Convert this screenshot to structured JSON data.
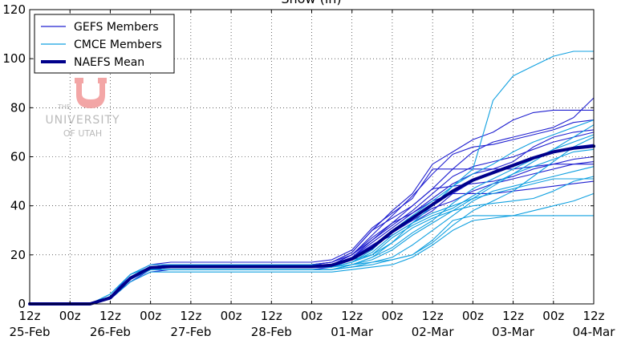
{
  "chart_data": {
    "type": "line",
    "title": "Snow (in)",
    "xlabel": "",
    "ylabel": "",
    "ylim": [
      0,
      120
    ],
    "yticks": [
      0,
      20,
      40,
      60,
      80,
      100,
      120
    ],
    "xlim": [
      0,
      28
    ],
    "x_tick_labels": [
      {
        "x": 0,
        "time": "12z",
        "date": "25-Feb"
      },
      {
        "x": 2,
        "time": "00z",
        "date": ""
      },
      {
        "x": 4,
        "time": "12z",
        "date": "26-Feb"
      },
      {
        "x": 6,
        "time": "00z",
        "date": ""
      },
      {
        "x": 8,
        "time": "12z",
        "date": "27-Feb"
      },
      {
        "x": 10,
        "time": "00z",
        "date": ""
      },
      {
        "x": 12,
        "time": "12z",
        "date": "28-Feb"
      },
      {
        "x": 14,
        "time": "00z",
        "date": ""
      },
      {
        "x": 16,
        "time": "12z",
        "date": "01-Mar"
      },
      {
        "x": 18,
        "time": "00z",
        "date": ""
      },
      {
        "x": 20,
        "time": "12z",
        "date": "02-Mar"
      },
      {
        "x": 22,
        "time": "00z",
        "date": ""
      },
      {
        "x": 24,
        "time": "12z",
        "date": "03-Mar"
      },
      {
        "x": 26,
        "time": "00z",
        "date": ""
      },
      {
        "x": 28,
        "time": "12z",
        "date": "04-Mar"
      }
    ],
    "grid": "dotted",
    "legend": {
      "placement": "top-left",
      "entries": [
        {
          "label": "GEFS Members",
          "color": "#2020d0",
          "width": "thin"
        },
        {
          "label": "CMCE Members",
          "color": "#10a0e0",
          "width": "thin"
        },
        {
          "label": "NAEFS Mean",
          "color": "#00008b",
          "width": "thick"
        }
      ]
    },
    "x": [
      0,
      1,
      2,
      3,
      4,
      5,
      6,
      7,
      8,
      9,
      10,
      11,
      12,
      13,
      14,
      15,
      16,
      17,
      18,
      19,
      20,
      21,
      22,
      23,
      24,
      25,
      26,
      27,
      28
    ],
    "series": [
      {
        "group": "gefs",
        "values": [
          0,
          0,
          0,
          0,
          2,
          10,
          15,
          16,
          16,
          16,
          16,
          16,
          16,
          16,
          16,
          17,
          21,
          30,
          38,
          45,
          57,
          62,
          67,
          70,
          75,
          78,
          79,
          79,
          79
        ]
      },
      {
        "group": "gefs",
        "values": [
          0,
          0,
          0,
          0,
          3,
          11,
          14,
          15,
          15,
          15,
          15,
          15,
          15,
          15,
          15,
          16,
          19,
          26,
          33,
          40,
          47,
          55,
          62,
          66,
          68,
          70,
          72,
          76,
          84
        ]
      },
      {
        "group": "gefs",
        "values": [
          0,
          0,
          0,
          0,
          2,
          9,
          14,
          15,
          15,
          15,
          15,
          15,
          15,
          15,
          15,
          16,
          20,
          28,
          36,
          44,
          53,
          61,
          64,
          65,
          67,
          69,
          71,
          74,
          75
        ]
      },
      {
        "group": "gefs",
        "values": [
          0,
          0,
          0,
          0,
          2,
          10,
          15,
          16,
          16,
          16,
          16,
          16,
          16,
          16,
          16,
          17,
          20,
          27,
          33,
          37,
          43,
          49,
          53,
          55,
          58,
          64,
          68,
          70,
          71
        ]
      },
      {
        "group": "gefs",
        "values": [
          0,
          0,
          0,
          0,
          3,
          12,
          16,
          17,
          17,
          17,
          17,
          17,
          17,
          17,
          17,
          18,
          22,
          31,
          37,
          43,
          55,
          55,
          55,
          55,
          55,
          56,
          57,
          57,
          57
        ]
      },
      {
        "group": "gefs",
        "values": [
          0,
          0,
          0,
          0,
          2,
          10,
          14,
          15,
          15,
          15,
          15,
          15,
          15,
          15,
          15,
          16,
          19,
          25,
          31,
          37,
          42,
          45,
          45,
          45,
          46,
          47,
          48,
          49,
          50
        ]
      },
      {
        "group": "gefs",
        "values": [
          0,
          0,
          0,
          0,
          2,
          9,
          13,
          14,
          14,
          14,
          14,
          14,
          14,
          14,
          14,
          15,
          18,
          24,
          29,
          34,
          39,
          42,
          46,
          49,
          51,
          53,
          55,
          57,
          58
        ]
      },
      {
        "group": "gefs",
        "values": [
          0,
          0,
          0,
          0,
          2,
          11,
          15,
          16,
          16,
          16,
          16,
          16,
          16,
          16,
          16,
          17,
          21,
          30,
          35,
          40,
          47,
          48,
          49,
          50,
          52,
          55,
          57,
          59,
          60
        ]
      },
      {
        "group": "gefs",
        "values": [
          0,
          0,
          0,
          0,
          2,
          10,
          14,
          15,
          15,
          15,
          15,
          15,
          15,
          15,
          15,
          16,
          20,
          26,
          32,
          38,
          45,
          52,
          56,
          58,
          60,
          63,
          66,
          68,
          70
        ]
      },
      {
        "group": "gefs",
        "values": [
          0,
          0,
          0,
          0,
          2,
          10,
          14,
          15,
          15,
          15,
          15,
          15,
          15,
          15,
          15,
          16,
          19,
          24,
          28,
          33,
          38,
          45,
          50,
          54,
          57,
          60,
          62,
          64,
          65
        ]
      },
      {
        "group": "cmce",
        "values": [
          0,
          0,
          0,
          0,
          4,
          12,
          16,
          16,
          16,
          16,
          16,
          16,
          16,
          16,
          16,
          16,
          18,
          20,
          25,
          33,
          40,
          48,
          55,
          83,
          93,
          97,
          101,
          103,
          103
        ]
      },
      {
        "group": "cmce",
        "values": [
          0,
          0,
          0,
          0,
          3,
          11,
          15,
          15,
          15,
          15,
          15,
          15,
          15,
          15,
          15,
          15,
          17,
          22,
          30,
          36,
          42,
          48,
          53,
          57,
          62,
          66,
          69,
          72,
          75
        ]
      },
      {
        "group": "cmce",
        "values": [
          0,
          0,
          0,
          0,
          3,
          10,
          14,
          14,
          14,
          14,
          14,
          14,
          14,
          14,
          14,
          14,
          16,
          18,
          22,
          28,
          33,
          38,
          43,
          48,
          53,
          58,
          63,
          68,
          73
        ]
      },
      {
        "group": "cmce",
        "values": [
          0,
          0,
          0,
          0,
          4,
          12,
          15,
          15,
          15,
          15,
          15,
          15,
          15,
          15,
          15,
          15,
          16,
          17,
          18,
          20,
          25,
          32,
          38,
          42,
          46,
          52,
          58,
          64,
          68
        ]
      },
      {
        "group": "cmce",
        "values": [
          0,
          0,
          0,
          0,
          3,
          10,
          14,
          14,
          14,
          14,
          14,
          14,
          14,
          14,
          14,
          14,
          15,
          17,
          19,
          24,
          30,
          36,
          42,
          46,
          48,
          50,
          52,
          54,
          56
        ]
      },
      {
        "group": "cmce",
        "values": [
          0,
          0,
          0,
          0,
          2,
          9,
          13,
          13,
          13,
          13,
          13,
          13,
          13,
          13,
          13,
          13,
          14,
          15,
          16,
          19,
          24,
          30,
          34,
          35,
          36,
          38,
          40,
          42,
          45
        ]
      },
      {
        "group": "cmce",
        "values": [
          0,
          0,
          0,
          0,
          3,
          10,
          14,
          14,
          14,
          14,
          14,
          14,
          14,
          14,
          14,
          14,
          15,
          16,
          18,
          20,
          26,
          34,
          36,
          36,
          36,
          36,
          36,
          36,
          36
        ]
      },
      {
        "group": "cmce",
        "values": [
          0,
          0,
          0,
          0,
          3,
          10,
          14,
          14,
          14,
          14,
          14,
          14,
          14,
          14,
          14,
          14,
          16,
          19,
          25,
          31,
          35,
          38,
          40,
          41,
          42,
          43,
          46,
          50,
          52
        ]
      },
      {
        "group": "cmce",
        "values": [
          0,
          0,
          0,
          0,
          3,
          11,
          15,
          15,
          15,
          15,
          15,
          15,
          15,
          15,
          15,
          15,
          17,
          20,
          27,
          32,
          36,
          39,
          44,
          49,
          53,
          56,
          59,
          62,
          63
        ]
      },
      {
        "group": "cmce",
        "values": [
          0,
          0,
          0,
          0,
          3,
          10,
          14,
          14,
          14,
          14,
          14,
          14,
          14,
          14,
          14,
          14,
          16,
          19,
          23,
          29,
          34,
          41,
          47,
          51,
          55,
          59,
          63,
          66,
          69
        ]
      },
      {
        "group": "cmce",
        "values": [
          0,
          0,
          0,
          0,
          3,
          11,
          15,
          15,
          15,
          15,
          15,
          15,
          15,
          15,
          15,
          15,
          17,
          21,
          28,
          33,
          37,
          40,
          43,
          45,
          47,
          49,
          51,
          51,
          51
        ]
      },
      {
        "group": "mean",
        "values": [
          0,
          0,
          0,
          0,
          2.5,
          10.5,
          14.8,
          15.2,
          15.2,
          15.2,
          15.2,
          15.2,
          15.2,
          15.2,
          15.2,
          15.8,
          18.3,
          23.0,
          29.5,
          35.0,
          40.5,
          46.0,
          50.5,
          53.5,
          56.5,
          59.5,
          62.0,
          63.5,
          64.3
        ]
      }
    ]
  },
  "logo": {
    "line1": "THE",
    "line2": "UNIVERSITY",
    "line3": "OF UTAH"
  }
}
